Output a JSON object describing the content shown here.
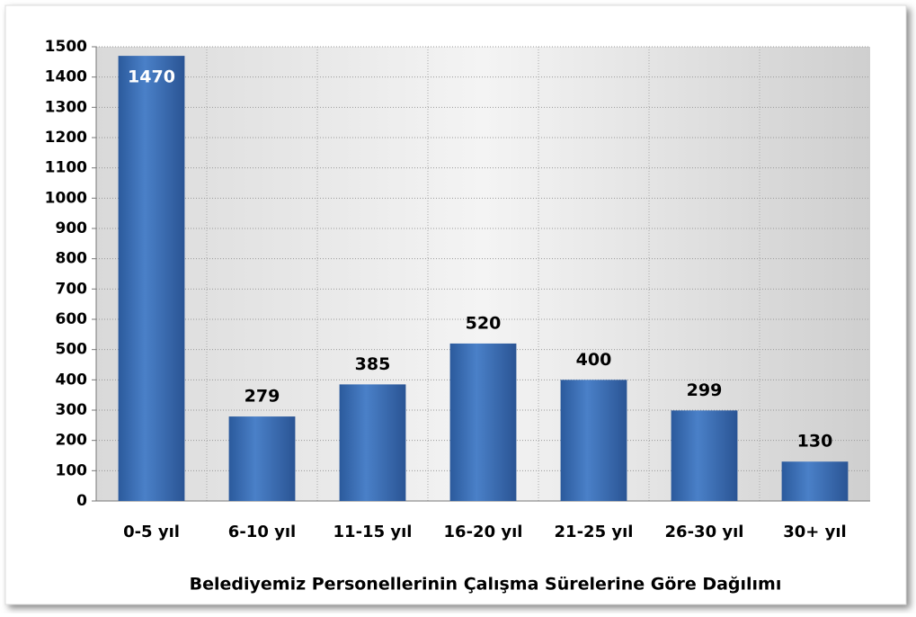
{
  "chart_data": {
    "type": "bar",
    "title": "Belediyemiz Personellerinin Çalışma Sürelerine Göre Dağılımı",
    "categories": [
      "0-5 yıl",
      "6-10 yıl",
      "11-15 yıl",
      "16-20 yıl",
      "21-25 yıl",
      "26-30 yıl",
      "30+ yıl"
    ],
    "values": [
      1470,
      279,
      385,
      520,
      400,
      299,
      130
    ],
    "color": "#3a6db5",
    "ylim": [
      0,
      1500
    ],
    "yticks": [
      0,
      100,
      200,
      300,
      400,
      500,
      600,
      700,
      800,
      900,
      1000,
      1100,
      1200,
      1300,
      1400,
      1500
    ],
    "grid": true
  }
}
